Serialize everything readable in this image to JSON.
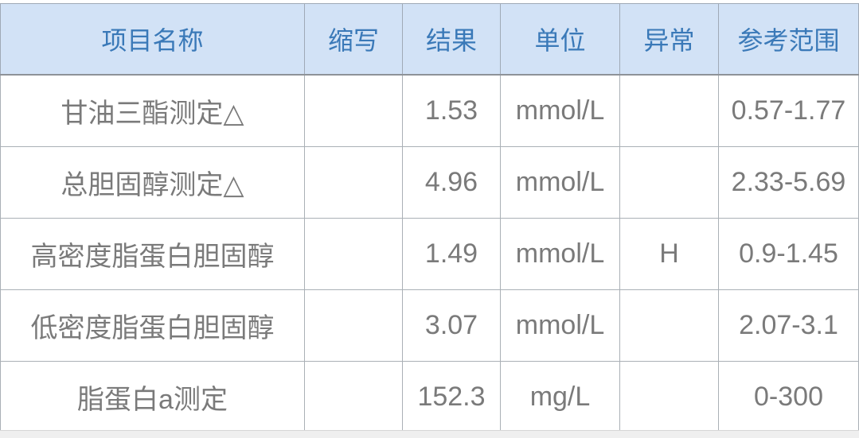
{
  "report_table": {
    "columns": {
      "name": "项目名称",
      "abbr": "缩写",
      "result": "结果",
      "unit": "单位",
      "flag": "异常",
      "range": "参考范围"
    },
    "rows": [
      {
        "name": "甘油三酯测定△",
        "abbr": "",
        "result": "1.53",
        "unit": "mmol/L",
        "flag": "",
        "range": "0.57-1.77"
      },
      {
        "name": "总胆固醇测定△",
        "abbr": "",
        "result": "4.96",
        "unit": "mmol/L",
        "flag": "",
        "range": "2.33-5.69"
      },
      {
        "name": "高密度脂蛋白胆固醇",
        "abbr": "",
        "result": "1.49",
        "unit": "mmol/L",
        "flag": "H",
        "range": "0.9-1.45"
      },
      {
        "name": "低密度脂蛋白胆固醇",
        "abbr": "",
        "result": "3.07",
        "unit": "mmol/L",
        "flag": "",
        "range": "2.07-3.1"
      },
      {
        "name": "脂蛋白a测定",
        "abbr": "",
        "result": "152.3",
        "unit": "mg/L",
        "flag": "",
        "range": "0-300"
      }
    ]
  },
  "colors": {
    "header_bg": "#d2e2f6",
    "header_text": "#3a79b8",
    "body_text": "#7a7a7a",
    "border": "#aab0b6",
    "bottom_strip": "#efefef",
    "page_bg": "#ffffff"
  }
}
